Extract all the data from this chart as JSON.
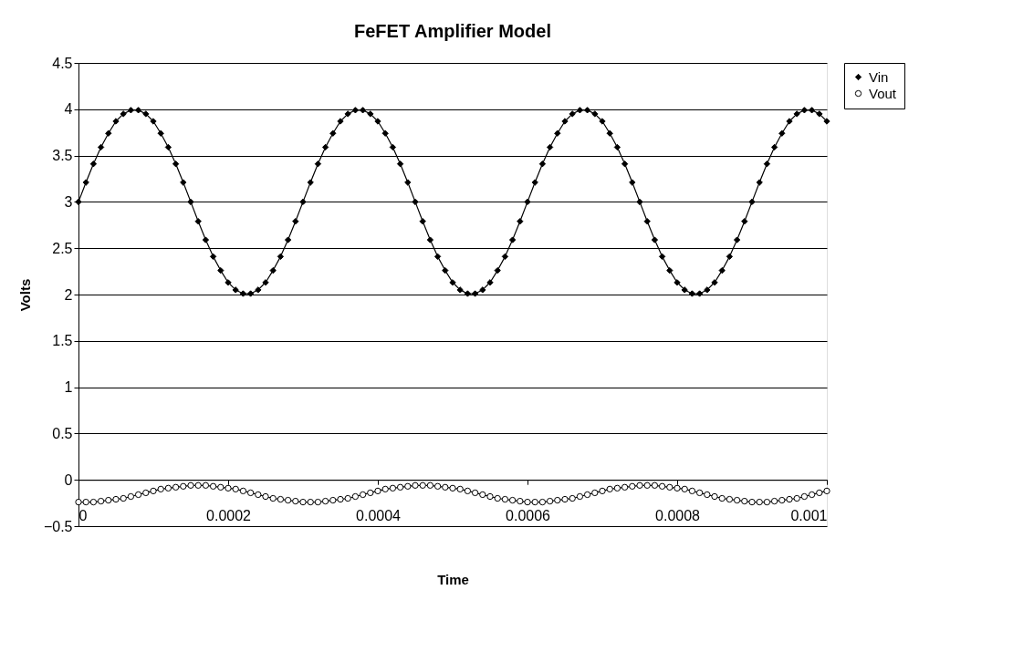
{
  "chart_data": {
    "type": "line",
    "title": "FeFET Amplifier Model",
    "xlabel": "Time",
    "ylabel": "Volts",
    "x": [
      0,
      1e-05,
      2e-05,
      3e-05,
      4e-05,
      5e-05,
      6e-05,
      7e-05,
      8e-05,
      9e-05,
      0.0001,
      0.00011,
      0.00012,
      0.00013,
      0.00014,
      0.00015,
      0.00016,
      0.00017,
      0.00018,
      0.00019,
      0.0002,
      0.00021,
      0.00022,
      0.00023,
      0.00024,
      0.00025,
      0.00026,
      0.00027,
      0.00028,
      0.00029,
      0.0003,
      0.00031,
      0.00032,
      0.00033,
      0.00034,
      0.00035,
      0.00036,
      0.00037,
      0.00038,
      0.00039,
      0.0004,
      0.00041,
      0.00042,
      0.00043,
      0.00044,
      0.00045,
      0.00046,
      0.00047,
      0.00048,
      0.00049,
      0.0005,
      0.00051,
      0.00052,
      0.00053,
      0.00054,
      0.00055,
      0.00056,
      0.00057,
      0.00058,
      0.00059,
      0.0006,
      0.00061,
      0.00062,
      0.00063,
      0.00064,
      0.00065,
      0.00066,
      0.00067,
      0.00068,
      0.00069,
      0.0007,
      0.00071,
      0.00072,
      0.00073,
      0.00074,
      0.00075,
      0.00076,
      0.00077,
      0.00078,
      0.00079,
      0.0008,
      0.00081,
      0.00082,
      0.00083,
      0.00084,
      0.00085,
      0.00086,
      0.00087,
      0.00088,
      0.00089,
      0.0009,
      0.00091,
      0.00092,
      0.00093,
      0.00094,
      0.00095,
      0.00096,
      0.00097,
      0.00098,
      0.00099,
      0.001
    ],
    "series": [
      {
        "name": "Vin",
        "color": "#000000",
        "marker": "diamond",
        "values": [
          3,
          3.21,
          3.41,
          3.59,
          3.74,
          3.87,
          3.95,
          3.99,
          3.99,
          3.95,
          3.87,
          3.74,
          3.59,
          3.41,
          3.21,
          3,
          2.79,
          2.59,
          2.41,
          2.26,
          2.13,
          2.05,
          2.01,
          2.01,
          2.05,
          2.13,
          2.26,
          2.41,
          2.59,
          2.79,
          3,
          3.21,
          3.41,
          3.59,
          3.74,
          3.87,
          3.95,
          3.99,
          3.99,
          3.95,
          3.87,
          3.74,
          3.59,
          3.41,
          3.21,
          3,
          2.79,
          2.59,
          2.41,
          2.26,
          2.13,
          2.05,
          2.01,
          2.01,
          2.05,
          2.13,
          2.26,
          2.41,
          2.59,
          2.79,
          3,
          3.21,
          3.41,
          3.59,
          3.74,
          3.87,
          3.95,
          3.99,
          3.99,
          3.95,
          3.87,
          3.74,
          3.59,
          3.41,
          3.21,
          3,
          2.79,
          2.59,
          2.41,
          2.26,
          2.13,
          2.05,
          2.01,
          2.01,
          2.05,
          2.13,
          2.26,
          2.41,
          2.59,
          2.79,
          3,
          3.21,
          3.41,
          3.59,
          3.74,
          3.87,
          3.95,
          3.99,
          3.99,
          3.95,
          3.87
        ]
      },
      {
        "name": "Vout",
        "color": "#000000",
        "marker": "circle",
        "values": [
          -0.24,
          -0.24,
          -0.24,
          -0.23,
          -0.22,
          -0.21,
          -0.2,
          -0.18,
          -0.16,
          -0.14,
          -0.12,
          -0.1,
          -0.09,
          -0.08,
          -0.07,
          -0.06,
          -0.06,
          -0.06,
          -0.07,
          -0.08,
          -0.09,
          -0.1,
          -0.12,
          -0.14,
          -0.16,
          -0.18,
          -0.2,
          -0.21,
          -0.22,
          -0.23,
          -0.24,
          -0.24,
          -0.24,
          -0.23,
          -0.22,
          -0.21,
          -0.2,
          -0.18,
          -0.16,
          -0.14,
          -0.12,
          -0.1,
          -0.09,
          -0.08,
          -0.07,
          -0.06,
          -0.06,
          -0.06,
          -0.07,
          -0.08,
          -0.09,
          -0.1,
          -0.12,
          -0.14,
          -0.16,
          -0.18,
          -0.2,
          -0.21,
          -0.22,
          -0.23,
          -0.24,
          -0.24,
          -0.24,
          -0.23,
          -0.22,
          -0.21,
          -0.2,
          -0.18,
          -0.16,
          -0.14,
          -0.12,
          -0.1,
          -0.09,
          -0.08,
          -0.07,
          -0.06,
          -0.06,
          -0.06,
          -0.07,
          -0.08,
          -0.09,
          -0.1,
          -0.12,
          -0.14,
          -0.16,
          -0.18,
          -0.2,
          -0.21,
          -0.22,
          -0.23,
          -0.24,
          -0.24,
          -0.24,
          -0.23,
          -0.22,
          -0.21,
          -0.2,
          -0.18,
          -0.16,
          -0.14,
          -0.12
        ]
      }
    ],
    "xlim": [
      0,
      0.001
    ],
    "xticks": [
      0,
      0.0002,
      0.0004,
      0.0006,
      0.0008,
      0.001
    ],
    "ylim": [
      -0.5,
      4.5
    ],
    "yticks": [
      -0.5,
      0,
      0.5,
      1,
      1.5,
      2,
      2.5,
      3,
      3.5,
      4,
      4.5
    ],
    "grid": "y",
    "legend": "right",
    "line_style": "solid"
  }
}
